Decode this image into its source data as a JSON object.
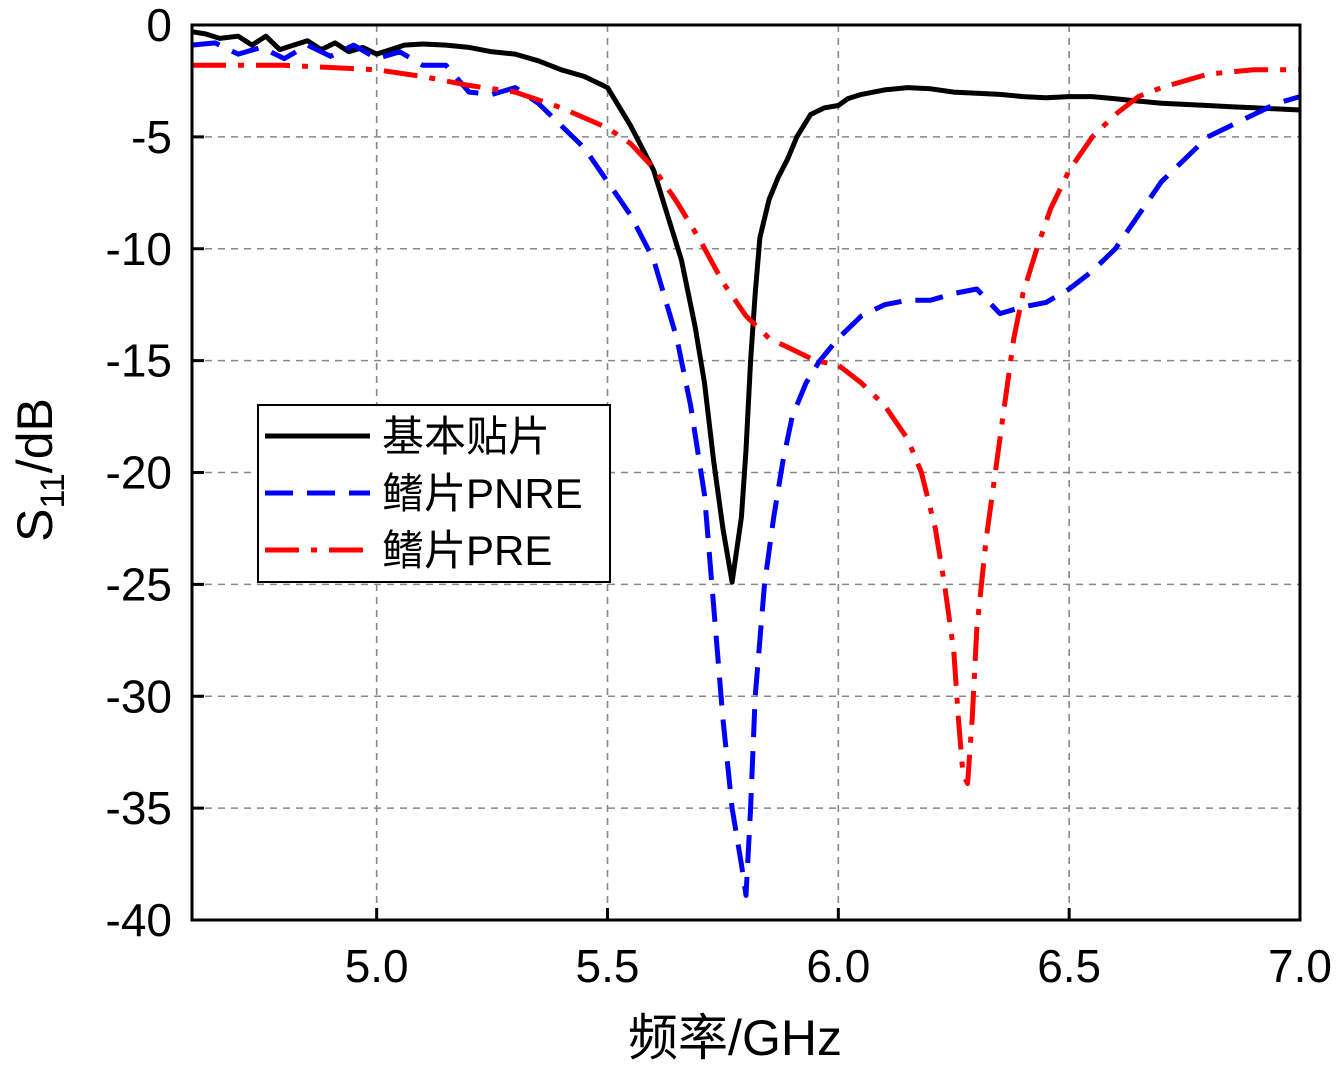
{
  "chart_data": {
    "type": "line",
    "title": "",
    "xlabel": "频率/GHz",
    "ylabel_main": "S",
    "ylabel_sub": "11",
    "ylabel_suffix": "/dB",
    "xlim": [
      4.6,
      7.0
    ],
    "ylim": [
      -40,
      0
    ],
    "xticks": [
      5.0,
      5.5,
      6.0,
      6.5,
      7.0
    ],
    "xtick_labels": [
      "5.0",
      "5.5",
      "6.0",
      "6.5",
      "7.0"
    ],
    "yticks": [
      0,
      -5,
      -10,
      -15,
      -20,
      -25,
      -30,
      -35,
      -40
    ],
    "ytick_labels": [
      "0",
      "-5",
      "-10",
      "-15",
      "-20",
      "-25",
      "-30",
      "-35",
      "-40"
    ],
    "grid": true,
    "legend_position": "center-left",
    "series": [
      {
        "name": "基本贴片",
        "color": "#000000",
        "dash": "solid",
        "x": [
          4.6,
          4.63,
          4.66,
          4.7,
          4.73,
          4.76,
          4.79,
          4.82,
          4.85,
          4.88,
          4.91,
          4.94,
          4.97,
          5.0,
          5.03,
          5.06,
          5.1,
          5.15,
          5.2,
          5.25,
          5.3,
          5.35,
          5.4,
          5.45,
          5.5,
          5.55,
          5.6,
          5.63,
          5.66,
          5.69,
          5.71,
          5.73,
          5.75,
          5.77,
          5.79,
          5.8,
          5.81,
          5.82,
          5.83,
          5.85,
          5.87,
          5.89,
          5.91,
          5.94,
          5.97,
          6.0,
          6.02,
          6.05,
          6.1,
          6.15,
          6.2,
          6.25,
          6.3,
          6.35,
          6.4,
          6.45,
          6.5,
          6.55,
          6.6,
          6.65,
          6.7,
          6.75,
          6.8,
          6.85,
          6.9,
          6.95,
          7.0
        ],
        "y": [
          -0.3,
          -0.4,
          -0.6,
          -0.5,
          -0.9,
          -0.5,
          -1.1,
          -0.9,
          -0.7,
          -1.1,
          -0.8,
          -1.2,
          -1.0,
          -1.3,
          -1.1,
          -0.9,
          -0.85,
          -0.9,
          -1.0,
          -1.2,
          -1.3,
          -1.6,
          -2.0,
          -2.3,
          -2.8,
          -4.5,
          -6.5,
          -8.5,
          -10.5,
          -13.5,
          -16.0,
          -19.5,
          -22.5,
          -24.9,
          -22.0,
          -19.0,
          -15.0,
          -12.0,
          -9.5,
          -7.8,
          -6.8,
          -6.0,
          -5.0,
          -4.0,
          -3.7,
          -3.6,
          -3.3,
          -3.1,
          -2.9,
          -2.8,
          -2.85,
          -3.0,
          -3.05,
          -3.1,
          -3.2,
          -3.25,
          -3.2,
          -3.2,
          -3.3,
          -3.4,
          -3.5,
          -3.55,
          -3.6,
          -3.65,
          -3.7,
          -3.75,
          -3.8
        ]
      },
      {
        "name": "鳍片PNRE",
        "color": "#0000ff",
        "dash": "28 14",
        "x": [
          4.6,
          4.65,
          4.7,
          4.75,
          4.8,
          4.85,
          4.9,
          4.95,
          5.0,
          5.05,
          5.1,
          5.15,
          5.2,
          5.25,
          5.3,
          5.35,
          5.4,
          5.45,
          5.5,
          5.55,
          5.6,
          5.65,
          5.68,
          5.71,
          5.73,
          5.75,
          5.77,
          5.79,
          5.8,
          5.81,
          5.82,
          5.84,
          5.86,
          5.88,
          5.9,
          5.93,
          5.96,
          6.0,
          6.05,
          6.1,
          6.15,
          6.2,
          6.25,
          6.3,
          6.35,
          6.4,
          6.45,
          6.5,
          6.55,
          6.6,
          6.65,
          6.7,
          6.75,
          6.8,
          6.85,
          6.9,
          6.95,
          7.0
        ],
        "y": [
          -0.9,
          -0.8,
          -1.3,
          -1.0,
          -1.5,
          -0.9,
          -1.4,
          -0.9,
          -1.5,
          -1.2,
          -1.8,
          -1.8,
          -3.0,
          -3.1,
          -2.8,
          -3.5,
          -4.5,
          -5.5,
          -7.0,
          -8.5,
          -10.5,
          -14.0,
          -17.0,
          -21.0,
          -26.0,
          -31.0,
          -35.0,
          -37.5,
          -38.9,
          -35.0,
          -30.0,
          -25.0,
          -22.0,
          -19.5,
          -17.5,
          -16.0,
          -15.0,
          -14.0,
          -13.0,
          -12.5,
          -12.3,
          -12.3,
          -12.0,
          -11.8,
          -12.9,
          -12.6,
          -12.4,
          -11.8,
          -11.0,
          -10.0,
          -8.5,
          -7.0,
          -6.0,
          -5.0,
          -4.5,
          -4.0,
          -3.5,
          -3.2
        ]
      },
      {
        "name": "鳍片PRE",
        "color": "#ff0000",
        "dash": "34 12 6 12",
        "x": [
          4.6,
          4.7,
          4.8,
          4.9,
          5.0,
          5.1,
          5.2,
          5.3,
          5.4,
          5.5,
          5.55,
          5.6,
          5.65,
          5.7,
          5.75,
          5.8,
          5.85,
          5.9,
          5.95,
          6.0,
          6.05,
          6.1,
          6.15,
          6.18,
          6.21,
          6.23,
          6.25,
          6.26,
          6.27,
          6.28,
          6.29,
          6.3,
          6.32,
          6.34,
          6.36,
          6.38,
          6.4,
          6.43,
          6.46,
          6.5,
          6.55,
          6.6,
          6.65,
          6.7,
          6.75,
          6.8,
          6.85,
          6.9,
          6.95,
          7.0
        ],
        "y": [
          -1.8,
          -1.8,
          -1.8,
          -1.9,
          -2.0,
          -2.3,
          -2.7,
          -3.0,
          -3.7,
          -4.6,
          -5.3,
          -6.4,
          -7.9,
          -9.6,
          -11.5,
          -13.0,
          -14.0,
          -14.5,
          -15.0,
          -15.2,
          -16.0,
          -17.0,
          -18.5,
          -20.0,
          -22.5,
          -25.0,
          -28.0,
          -31.0,
          -33.5,
          -33.9,
          -31.0,
          -27.0,
          -23.0,
          -20.0,
          -17.0,
          -14.0,
          -12.0,
          -10.0,
          -8.2,
          -6.5,
          -5.0,
          -4.0,
          -3.2,
          -2.8,
          -2.5,
          -2.2,
          -2.1,
          -2.0,
          -2.0,
          -2.0
        ]
      }
    ]
  }
}
